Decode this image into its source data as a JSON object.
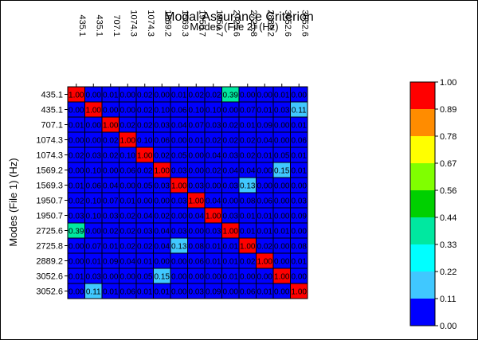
{
  "chart_data": {
    "type": "heatmap",
    "title": "Modal Assurance Criterion",
    "xlabel": "Modes (File 2) (Hz)",
    "ylabel": "Modes (File 1) (Hz)",
    "x_categories": [
      "435.1",
      "435.1",
      "707.1",
      "1074.3",
      "1074.3",
      "1569.2",
      "1569.3",
      "1950.7",
      "1950.7",
      "2725.6",
      "2725.8",
      "2889.2",
      "3052.6",
      "3052.6"
    ],
    "y_categories": [
      "435.1",
      "435.1",
      "707.1",
      "1074.3",
      "1074.3",
      "1569.2",
      "1569.3",
      "1950.7",
      "1950.7",
      "2725.6",
      "2725.8",
      "2889.2",
      "3052.6",
      "3052.6"
    ],
    "values": [
      [
        1.0,
        0.0,
        0.01,
        0.0,
        0.02,
        0.0,
        0.01,
        0.02,
        0.02,
        0.39,
        0.0,
        0.0,
        0.01,
        0.0
      ],
      [
        0.0,
        1.0,
        0.0,
        0.0,
        0.02,
        0.1,
        0.06,
        0.1,
        0.1,
        0.0,
        0.07,
        0.01,
        0.03,
        0.11
      ],
      [
        0.01,
        0.0,
        1.0,
        0.02,
        0.02,
        0.03,
        0.04,
        0.07,
        0.03,
        0.02,
        0.01,
        0.09,
        0.0,
        0.01
      ],
      [
        0.0,
        0.0,
        0.02,
        1.0,
        0.1,
        0.06,
        0.0,
        0.01,
        0.02,
        0.02,
        0.02,
        0.04,
        0.0,
        0.06
      ],
      [
        0.02,
        0.03,
        0.02,
        0.1,
        1.0,
        0.02,
        0.05,
        0.0,
        0.04,
        0.03,
        0.02,
        0.01,
        0.05,
        0.01
      ],
      [
        0.0,
        0.1,
        0.0,
        0.06,
        0.02,
        1.0,
        0.03,
        0.0,
        0.02,
        0.04,
        0.04,
        0.0,
        0.15,
        0.01
      ],
      [
        0.01,
        0.06,
        0.04,
        0.0,
        0.05,
        0.03,
        1.0,
        0.03,
        0.0,
        0.03,
        0.13,
        0.0,
        0.0,
        0.0
      ],
      [
        0.02,
        0.1,
        0.07,
        0.01,
        0.0,
        0.0,
        0.03,
        1.0,
        0.04,
        0.0,
        0.08,
        0.06,
        0.0,
        0.03
      ],
      [
        0.03,
        0.1,
        0.03,
        0.02,
        0.04,
        0.02,
        0.0,
        0.04,
        1.0,
        0.03,
        0.01,
        0.01,
        0.0,
        0.09
      ],
      [
        0.39,
        0.0,
        0.02,
        0.02,
        0.03,
        0.04,
        0.03,
        0.0,
        0.03,
        1.0,
        0.01,
        0.01,
        0.01,
        0.0
      ],
      [
        0.0,
        0.07,
        0.01,
        0.02,
        0.02,
        0.04,
        0.13,
        0.08,
        0.01,
        0.01,
        1.0,
        0.02,
        0.0,
        0.08
      ],
      [
        0.0,
        0.01,
        0.09,
        0.04,
        0.01,
        0.0,
        0.0,
        0.06,
        0.01,
        0.01,
        0.02,
        1.0,
        0.0,
        0.01
      ],
      [
        0.01,
        0.03,
        0.0,
        0.0,
        0.05,
        0.15,
        0.0,
        0.0,
        0.0,
        0.01,
        0.0,
        0.0,
        1.0,
        0.0
      ],
      [
        0.0,
        0.11,
        0.01,
        0.06,
        0.01,
        0.01,
        0.0,
        0.03,
        0.09,
        0.0,
        0.06,
        0.01,
        0.0,
        1.0
      ]
    ],
    "colorbar": {
      "ticks": [
        "1.00",
        "0.89",
        "0.78",
        "0.67",
        "0.56",
        "0.44",
        "0.33",
        "0.22",
        "0.11",
        "0.00"
      ],
      "bands": [
        {
          "min": 0.89,
          "max": 1.0,
          "color": "#ff0000"
        },
        {
          "min": 0.78,
          "max": 0.89,
          "color": "#ff8c00"
        },
        {
          "min": 0.67,
          "max": 0.78,
          "color": "#ffff00"
        },
        {
          "min": 0.56,
          "max": 0.67,
          "color": "#80ff00"
        },
        {
          "min": 0.44,
          "max": 0.56,
          "color": "#00d000"
        },
        {
          "min": 0.33,
          "max": 0.44,
          "color": "#00e8a0"
        },
        {
          "min": 0.22,
          "max": 0.33,
          "color": "#00ffff"
        },
        {
          "min": 0.11,
          "max": 0.22,
          "color": "#40c8ff"
        },
        {
          "min": 0.0,
          "max": 0.11,
          "color": "#0000ff"
        }
      ]
    },
    "grid": true,
    "legend": "right"
  }
}
